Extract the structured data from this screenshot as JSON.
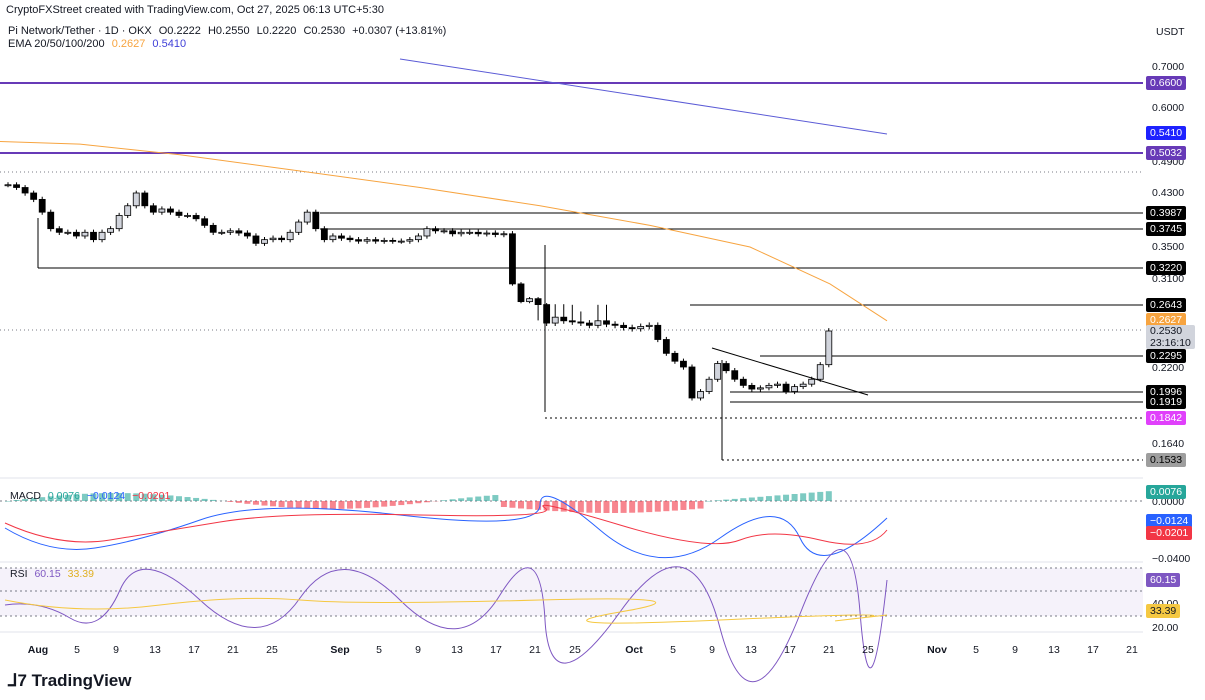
{
  "header": {
    "created_by": "CryptoFXStreet created with TradingView.com, Oct 27, 2025 06:13 UTC+5:30",
    "symbol": "Pi Network/Tether · 1D · OKX",
    "ohlc": {
      "open": "O0.2222",
      "high": "H0.2550",
      "low": "L0.2220",
      "close": "C0.2530",
      "change": "+0.0307 (+13.81%)"
    },
    "ema_label": "EMA 20/50/100/200",
    "ema_value_1": "0.2627",
    "ema_value_2": "0.5410",
    "currency": "USDT"
  },
  "colors": {
    "up": "#d1d4dc",
    "down": "#000000",
    "ema100": "#f7a440",
    "ema200": "#5b5bd6",
    "purple_line": "#7e57c2",
    "macd_line": "#2962ff",
    "signal_line": "#f23645",
    "rsi_line": "#7e57c2",
    "rsi_ma": "#f5c842"
  },
  "price_axis": {
    "ticks": [
      "0.7000",
      "0.6000",
      "0.4900",
      "0.4300",
      "0.3500",
      "0.3100",
      "0.2200",
      "0.1640"
    ],
    "macd_ticks": [
      "0.0000",
      "−0.0400"
    ],
    "rsi_ticks": [
      "40.00",
      "20.00"
    ]
  },
  "price_labels": [
    {
      "text": "0.6600",
      "bg": "#673ab7",
      "fg": "#ffffff",
      "value": 0.66
    },
    {
      "text": "0.5410",
      "bg": "#1e22ff",
      "fg": "#ffffff",
      "value": 0.541
    },
    {
      "text": "0.5032",
      "bg": "#673ab7",
      "fg": "#ffffff",
      "value": 0.5032
    },
    {
      "text": "0.3987",
      "bg": "#000000",
      "fg": "#ffffff",
      "value": 0.3987
    },
    {
      "text": "0.3745",
      "bg": "#000000",
      "fg": "#ffffff",
      "value": 0.3745
    },
    {
      "text": "0.3220",
      "bg": "#000000",
      "fg": "#ffffff",
      "value": 0.322
    },
    {
      "text": "0.2643",
      "bg": "#000000",
      "fg": "#ffffff",
      "value": 0.2643
    },
    {
      "text": "0.2627",
      "bg": "#f7a440",
      "fg": "#ffffff",
      "value": 0.2627
    },
    {
      "text": "0.2295",
      "bg": "#000000",
      "fg": "#ffffff",
      "value": 0.2295
    },
    {
      "text": "0.1996",
      "bg": "#000000",
      "fg": "#ffffff",
      "value": 0.1996
    },
    {
      "text": "0.1919",
      "bg": "#000000",
      "fg": "#ffffff",
      "value": 0.1919
    },
    {
      "text": "0.1842",
      "bg": "#e040fb",
      "fg": "#ffffff",
      "value": 0.1842
    },
    {
      "text": "0.1533",
      "bg": "#9e9e9e",
      "fg": "#000000",
      "value": 0.1533
    }
  ],
  "current_price": {
    "text": "0.2530",
    "countdown": "23:16:10",
    "value": 0.253
  },
  "macd": {
    "label": "MACD",
    "v1": "0.0076",
    "v2": "−0.0124",
    "v3": "−0.0201",
    "tag1": "0.0076",
    "tag2": "−0.0124",
    "tag3": "−0.0201"
  },
  "rsi": {
    "label": "RSI",
    "v1": "60.15",
    "v2": "33.39",
    "tag1": "60.15",
    "tag2": "33.39"
  },
  "chart_data": {
    "type": "line",
    "title": "Pi Network/Tether · 1D · OKX",
    "x_ticks": [
      "Aug",
      "5",
      "9",
      "13",
      "17",
      "21",
      "25",
      "Sep",
      "5",
      "9",
      "13",
      "17",
      "21",
      "25",
      "Oct",
      "5",
      "9",
      "13",
      "17",
      "21",
      "25",
      "Nov",
      "5",
      "9",
      "13",
      "17",
      "21"
    ],
    "candles_close": [
      0.445,
      0.44,
      0.43,
      0.42,
      0.4,
      0.375,
      0.37,
      0.37,
      0.365,
      0.37,
      0.36,
      0.37,
      0.375,
      0.395,
      0.41,
      0.43,
      0.41,
      0.4,
      0.405,
      0.4,
      0.395,
      0.395,
      0.39,
      0.38,
      0.37,
      0.37,
      0.372,
      0.369,
      0.365,
      0.355,
      0.36,
      0.362,
      0.36,
      0.37,
      0.385,
      0.4,
      0.375,
      0.36,
      0.365,
      0.362,
      0.36,
      0.358,
      0.36,
      0.358,
      0.359,
      0.358,
      0.358,
      0.36,
      0.365,
      0.375,
      0.372,
      0.372,
      0.368,
      0.37,
      0.37,
      0.368,
      0.369,
      0.367,
      0.368,
      0.3,
      0.27,
      0.275,
      0.265,
      0.26,
      0.263,
      0.262,
      0.261,
      0.26,
      0.258,
      0.262,
      0.259,
      0.258,
      0.256,
      0.255,
      0.257,
      0.258,
      0.245,
      0.232,
      0.225,
      0.22,
      0.195,
      0.2,
      0.21,
      0.223,
      0.217,
      0.21,
      0.205,
      0.202,
      0.203,
      0.205,
      0.206,
      0.2,
      0.204,
      0.206,
      0.21,
      0.222,
      0.253
    ],
    "ema100": [
      0.525,
      0.52,
      0.5,
      0.47,
      0.44,
      0.41,
      0.38,
      0.35,
      0.3,
      0.262
    ],
    "ema200": [
      0.7,
      0.68,
      0.65,
      0.62,
      0.6,
      0.58,
      0.55,
      0.541
    ],
    "ylim": [
      0.14,
      0.72
    ],
    "horizontal_levels": [
      0.66,
      0.5032,
      0.3987,
      0.3745,
      0.322,
      0.2643,
      0.2295,
      0.1996,
      0.1919,
      0.1842,
      0.1533
    ]
  }
}
